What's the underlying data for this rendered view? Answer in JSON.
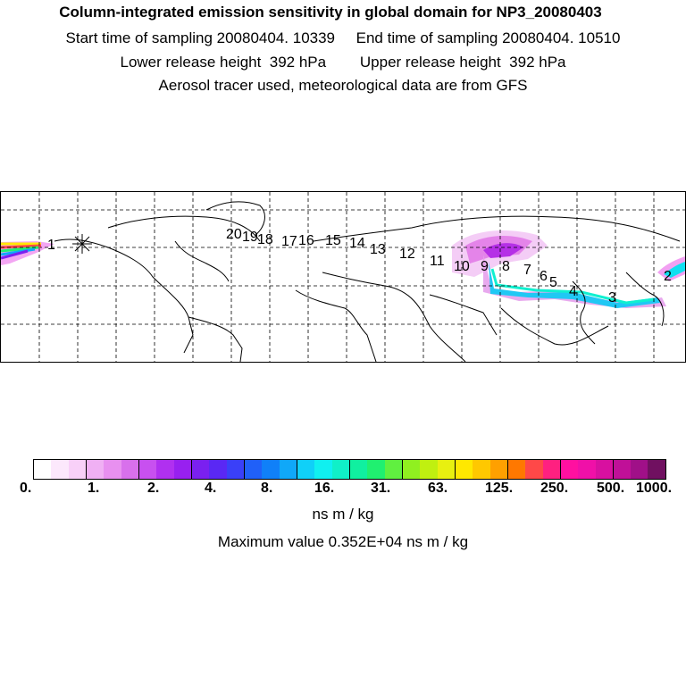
{
  "header": {
    "title": "Column-integrated emission sensitivity in global domain for NP3_20080403",
    "line1": "Start time of sampling 20080404. 10339     End time of sampling 20080404. 10510",
    "line2": "Lower release height  392 hPa        Upper release height  392 hPa",
    "line3": "Aerosol tracer used, meteorological data are from GFS"
  },
  "map": {
    "track_markers": [
      "20",
      "19",
      "18",
      "17",
      "16",
      "15",
      "14",
      "13",
      "12",
      "11",
      "10",
      "9",
      "8",
      "7",
      "6",
      "5",
      "4",
      "3",
      "2",
      "1"
    ],
    "release_marker": "start-star-icon"
  },
  "colorbar": {
    "colors": [
      "#ffffff",
      "#fce8fc",
      "#f8d0f8",
      "#f0b0f4",
      "#e890f0",
      "#d870ec",
      "#c850f0",
      "#b030f0",
      "#9820f0",
      "#7a20f0",
      "#5a28f4",
      "#3a40f8",
      "#2060f8",
      "#1080f8",
      "#10a8f8",
      "#10d0f8",
      "#10f0f0",
      "#10f0c8",
      "#10f0a0",
      "#20f070",
      "#60f040",
      "#90f020",
      "#c0f010",
      "#e8f010",
      "#ffe800",
      "#ffc800",
      "#ffa000",
      "#ff7800",
      "#ff4848",
      "#ff2080",
      "#ff10a0",
      "#f010a8",
      "#d810a0",
      "#c01098",
      "#a01088",
      "#701060"
    ],
    "tick_labels": [
      "0.",
      "1.",
      "2.",
      "4.",
      "8.",
      "16.",
      "31.",
      "63.",
      "125.",
      "250.",
      "500.",
      "1000."
    ],
    "units": "ns m / kg",
    "max_value": "Maximum value  0.352E+04 ns m / kg"
  }
}
